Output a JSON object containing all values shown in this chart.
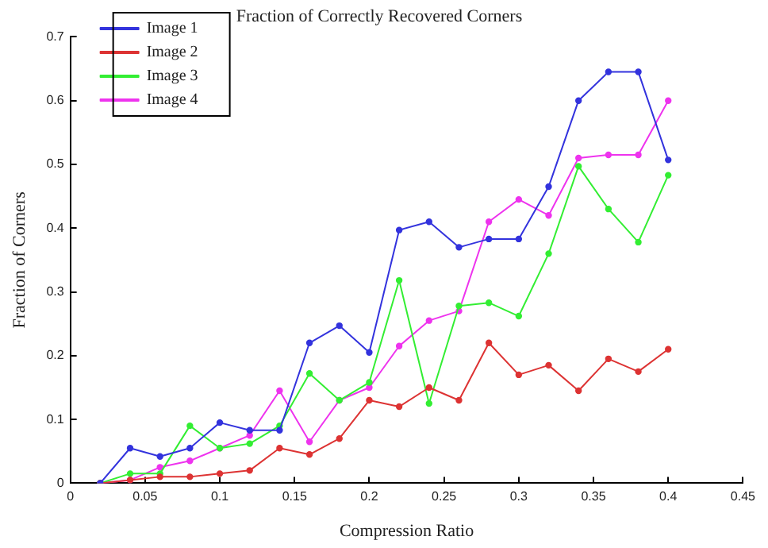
{
  "chart_data": {
    "type": "line",
    "title": "Fraction of Correctly Recovered Corners",
    "xlabel": "Compression Ratio",
    "ylabel": "Fraction of Corners",
    "x": [
      0.02,
      0.04,
      0.06,
      0.08,
      0.1,
      0.12,
      0.14,
      0.16,
      0.18,
      0.2,
      0.22,
      0.24,
      0.26,
      0.28,
      0.3,
      0.32,
      0.34,
      0.36,
      0.38,
      0.4
    ],
    "series": [
      {
        "name": "Image 1",
        "color": "#3333dd",
        "values": [
          0,
          0.055,
          0.042,
          0.055,
          0.095,
          0.083,
          0.083,
          0.22,
          0.247,
          0.205,
          0.397,
          0.41,
          0.37,
          0.383,
          0.383,
          0.465,
          0.6,
          0.645,
          0.645,
          0.507
        ]
      },
      {
        "name": "Image 2",
        "color": "#dd3333",
        "values": [
          0,
          0.005,
          0.01,
          0.01,
          0.015,
          0.02,
          0.055,
          0.045,
          0.07,
          0.13,
          0.12,
          0.15,
          0.13,
          0.22,
          0.17,
          0.185,
          0.145,
          0.195,
          0.175,
          0.21
        ]
      },
      {
        "name": "Image 3",
        "color": "#33ee33",
        "values": [
          0,
          0.015,
          0.015,
          0.09,
          0.055,
          0.062,
          0.09,
          0.172,
          0.13,
          0.158,
          0.318,
          0.125,
          0.278,
          0.283,
          0.262,
          0.36,
          0.497,
          0.43,
          0.378,
          0.483
        ]
      },
      {
        "name": "Image 4",
        "color": "#ee33ee",
        "values": [
          0,
          0.005,
          0.025,
          0.035,
          0.055,
          0.075,
          0.145,
          0.065,
          0.13,
          0.15,
          0.215,
          0.255,
          0.27,
          0.41,
          0.445,
          0.42,
          0.51,
          0.515,
          0.515,
          0.6
        ]
      }
    ],
    "xlim": [
      0,
      0.45
    ],
    "xticks": [
      0,
      0.05,
      0.1,
      0.15,
      0.2,
      0.25,
      0.3,
      0.35,
      0.4,
      0.45
    ],
    "ylim": [
      0,
      0.7
    ],
    "yticks": [
      0,
      0.1,
      0.2,
      0.3,
      0.4,
      0.5,
      0.6,
      0.7
    ],
    "grid": false,
    "legend": "top left",
    "marker": "circle",
    "line_style": "solid"
  }
}
